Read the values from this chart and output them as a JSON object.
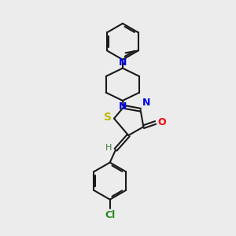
{
  "background_color": "#ececec",
  "bond_color": "#1a1a1a",
  "atom_colors": {
    "N": "#0000ee",
    "O": "#ff0000",
    "S": "#bbbb00",
    "Cl": "#228822",
    "H": "#447744"
  },
  "figsize": [
    3.0,
    3.0
  ],
  "dpi": 100
}
